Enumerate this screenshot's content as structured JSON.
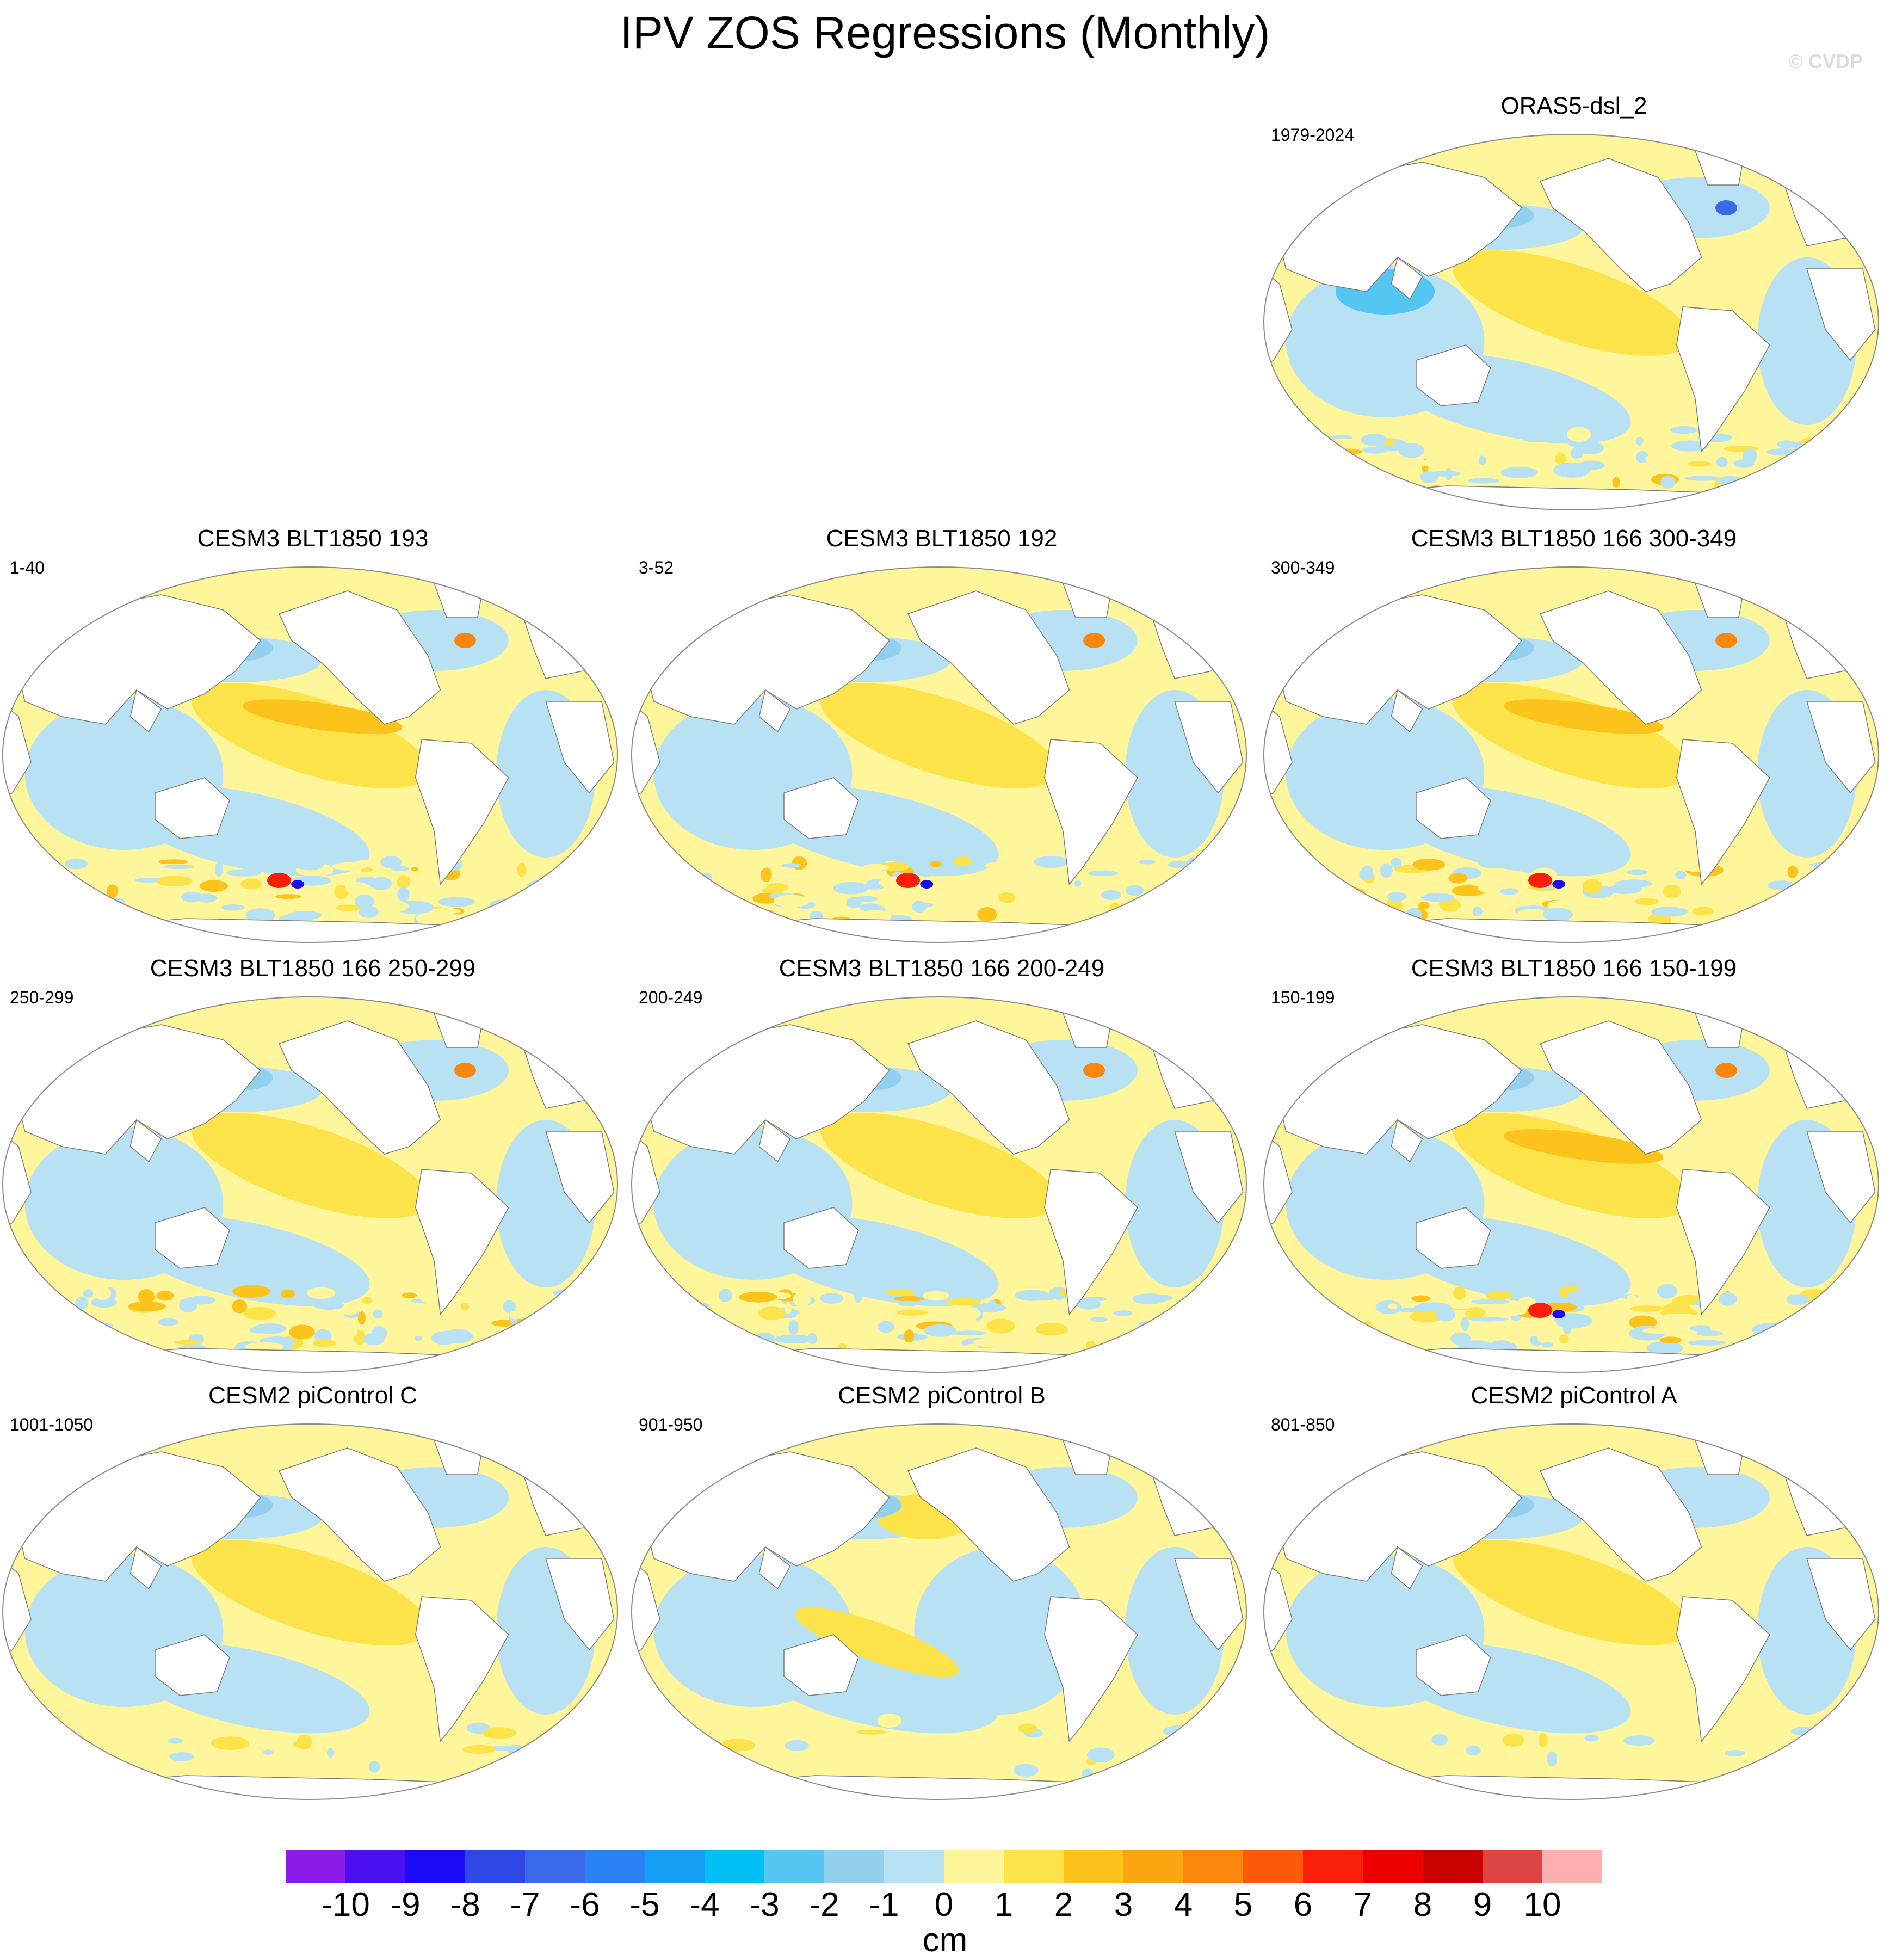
{
  "title": "IPV ZOS Regressions (Monthly)",
  "watermark": "© CVDP",
  "panels": [
    {
      "id": "oras5",
      "title": "ORAS5-dsl_2",
      "years": "1979-2024",
      "pattern": "obs"
    },
    {
      "id": "c3-193",
      "title": "CESM3 BLT1850 193",
      "years": "1-40",
      "pattern": "warm-strong"
    },
    {
      "id": "c3-192",
      "title": "CESM3 BLT1850 192",
      "years": "3-52",
      "pattern": "warm-south"
    },
    {
      "id": "c3-300",
      "title": "CESM3 BLT1850 166 300-349",
      "years": "300-349",
      "pattern": "warm-strong"
    },
    {
      "id": "c3-250",
      "title": "CESM3 BLT1850 166 250-299",
      "years": "250-299",
      "pattern": "warm"
    },
    {
      "id": "c3-200",
      "title": "CESM3 BLT1850 166 200-249",
      "years": "200-249",
      "pattern": "warm"
    },
    {
      "id": "c3-150",
      "title": "CESM3 BLT1850 166 150-199",
      "years": "150-199",
      "pattern": "warm-strong"
    },
    {
      "id": "c2-c",
      "title": "CESM2 piControl C",
      "years": "1001-1050",
      "pattern": "smooth"
    },
    {
      "id": "c2-b",
      "title": "CESM2 piControl B",
      "years": "901-950",
      "pattern": "smooth-cool"
    },
    {
      "id": "c2-a",
      "title": "CESM2 piControl A",
      "years": "801-850",
      "pattern": "smooth"
    }
  ],
  "colorbar": {
    "units": "cm",
    "labels": [
      "-10",
      "-9",
      "-8",
      "-7",
      "-6",
      "-5",
      "-4",
      "-3",
      "-2",
      "-1",
      "0",
      "1",
      "2",
      "3",
      "4",
      "5",
      "6",
      "7",
      "8",
      "9",
      "10"
    ],
    "colors": [
      "#8a1ce8",
      "#4a10f0",
      "#1a0af5",
      "#2e48e6",
      "#3a6ae8",
      "#2a82f2",
      "#159ff5",
      "#00bff5",
      "#55c6f2",
      "#92d0ee",
      "#b8e1f4",
      "#fff59a",
      "#fde34a",
      "#fcc31d",
      "#fba511",
      "#fb860c",
      "#fb5a0a",
      "#fb1f0a",
      "#ee0000",
      "#c70000",
      "#dc4444",
      "#fcb0b0"
    ]
  }
}
